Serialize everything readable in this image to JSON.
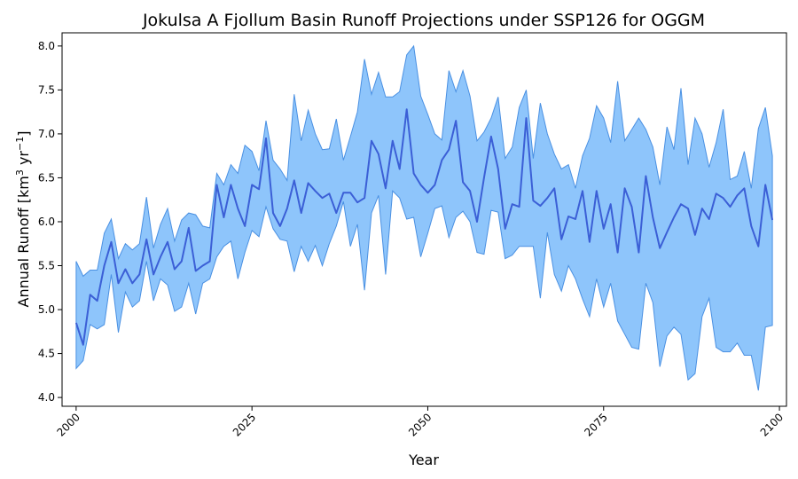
{
  "chart_data": {
    "type": "area",
    "title": "Jokulsa A Fjollum Basin Runoff Projections under SSP126 for OGGM",
    "xlabel": "Year",
    "ylabel_main": "Annual Runoff [km",
    "ylabel_sup1": "3",
    "ylabel_mid": " yr",
    "ylabel_sup2": "−1",
    "ylabel_end": "]",
    "xlim": [
      1998,
      2101
    ],
    "ylim": [
      3.9,
      8.15
    ],
    "xticks": [
      2000,
      2025,
      2050,
      2075,
      2100
    ],
    "yticks": [
      4.0,
      4.5,
      5.0,
      5.5,
      6.0,
      6.5,
      7.0,
      7.5,
      8.0
    ],
    "ytick_labels": [
      "4.0",
      "4.5",
      "5.0",
      "5.5",
      "6.0",
      "6.5",
      "7.0",
      "7.5",
      "8.0"
    ],
    "grid": false,
    "colors": {
      "band_fill": "#8ec5fb",
      "band_edge": "#4a90e2",
      "median_line": "#3b5fd6"
    },
    "x": [
      2000,
      2001,
      2002,
      2003,
      2004,
      2005,
      2006,
      2007,
      2008,
      2009,
      2010,
      2011,
      2012,
      2013,
      2014,
      2015,
      2016,
      2017,
      2018,
      2019,
      2020,
      2021,
      2022,
      2023,
      2024,
      2025,
      2026,
      2027,
      2028,
      2029,
      2030,
      2031,
      2032,
      2033,
      2034,
      2035,
      2036,
      2037,
      2038,
      2039,
      2040,
      2041,
      2042,
      2043,
      2044,
      2045,
      2046,
      2047,
      2048,
      2049,
      2050,
      2051,
      2052,
      2053,
      2054,
      2055,
      2056,
      2057,
      2058,
      2059,
      2060,
      2061,
      2062,
      2063,
      2064,
      2065,
      2066,
      2067,
      2068,
      2069,
      2070,
      2071,
      2072,
      2073,
      2074,
      2075,
      2076,
      2077,
      2078,
      2079,
      2080,
      2081,
      2082,
      2083,
      2084,
      2085,
      2086,
      2087,
      2088,
      2089,
      2090,
      2091,
      2092,
      2093,
      2094,
      2095,
      2096,
      2097,
      2098,
      2099
    ],
    "series": [
      {
        "role": "median",
        "values": [
          4.85,
          4.6,
          5.17,
          5.1,
          5.5,
          5.77,
          5.3,
          5.46,
          5.3,
          5.4,
          5.8,
          5.4,
          5.6,
          5.77,
          5.46,
          5.55,
          5.93,
          5.44,
          5.5,
          5.55,
          6.42,
          6.05,
          6.42,
          6.15,
          5.95,
          6.42,
          6.37,
          6.95,
          6.1,
          5.95,
          6.15,
          6.47,
          6.1,
          6.44,
          6.35,
          6.27,
          6.32,
          6.1,
          6.33,
          6.33,
          6.22,
          6.27,
          6.92,
          6.77,
          6.38,
          6.92,
          6.6,
          7.28,
          6.55,
          6.42,
          6.33,
          6.42,
          6.7,
          6.82,
          7.15,
          6.45,
          6.35,
          6.0,
          6.5,
          6.97,
          6.6,
          5.92,
          6.2,
          6.17,
          7.18,
          6.24,
          6.18,
          6.27,
          6.38,
          5.8,
          6.06,
          6.03,
          6.35,
          5.77,
          6.35,
          5.92,
          6.2,
          5.65,
          6.38,
          6.17,
          5.65,
          6.52,
          6.05,
          5.7,
          5.88,
          6.05,
          6.2,
          6.15,
          5.85,
          6.15,
          6.03,
          6.32,
          6.27,
          6.17,
          6.3,
          6.38,
          5.95,
          5.72,
          6.42,
          6.02
        ]
      },
      {
        "role": "upper",
        "values": [
          5.55,
          5.38,
          5.45,
          5.45,
          5.87,
          6.03,
          5.58,
          5.75,
          5.68,
          5.75,
          6.28,
          5.7,
          5.97,
          6.15,
          5.78,
          6.02,
          6.1,
          6.08,
          5.95,
          5.93,
          6.55,
          6.42,
          6.65,
          6.55,
          6.87,
          6.8,
          6.58,
          7.15,
          6.7,
          6.6,
          6.47,
          7.45,
          6.92,
          7.27,
          7.0,
          6.82,
          6.83,
          7.17,
          6.7,
          6.97,
          7.25,
          7.85,
          7.45,
          7.7,
          7.42,
          7.42,
          7.48,
          7.9,
          8.0,
          7.43,
          7.22,
          7.0,
          6.93,
          7.72,
          7.48,
          7.72,
          7.43,
          6.92,
          7.02,
          7.18,
          7.42,
          6.72,
          6.85,
          7.3,
          7.5,
          6.72,
          7.35,
          7.0,
          6.77,
          6.6,
          6.65,
          6.38,
          6.75,
          6.95,
          7.32,
          7.18,
          6.9,
          7.6,
          6.92,
          7.05,
          7.18,
          7.05,
          6.85,
          6.42,
          7.08,
          6.82,
          7.52,
          6.65,
          7.18,
          7.0,
          6.62,
          6.9,
          7.28,
          6.48,
          6.52,
          6.8,
          6.38,
          7.06,
          7.3,
          6.75
        ]
      },
      {
        "role": "lower",
        "values": [
          4.33,
          4.42,
          4.83,
          4.78,
          4.83,
          5.4,
          4.74,
          5.2,
          5.03,
          5.1,
          5.55,
          5.1,
          5.35,
          5.28,
          4.98,
          5.03,
          5.3,
          4.95,
          5.3,
          5.35,
          5.6,
          5.72,
          5.78,
          5.35,
          5.65,
          5.9,
          5.83,
          6.17,
          5.92,
          5.8,
          5.78,
          5.43,
          5.72,
          5.55,
          5.73,
          5.5,
          5.75,
          5.95,
          6.23,
          5.72,
          5.97,
          5.22,
          6.1,
          6.3,
          5.4,
          6.35,
          6.27,
          6.03,
          6.05,
          5.6,
          5.87,
          6.15,
          6.18,
          5.82,
          6.05,
          6.12,
          6.0,
          5.65,
          5.63,
          6.13,
          6.11,
          5.58,
          5.62,
          5.72,
          5.72,
          5.72,
          5.13,
          5.88,
          5.4,
          5.21,
          5.5,
          5.35,
          5.12,
          4.92,
          5.35,
          5.03,
          5.3,
          4.87,
          4.72,
          4.57,
          4.55,
          5.3,
          5.08,
          4.35,
          4.7,
          4.8,
          4.72,
          4.2,
          4.27,
          4.92,
          5.13,
          4.57,
          4.52,
          4.52,
          4.62,
          4.48,
          4.48,
          4.08,
          4.8,
          4.82
        ]
      }
    ]
  }
}
